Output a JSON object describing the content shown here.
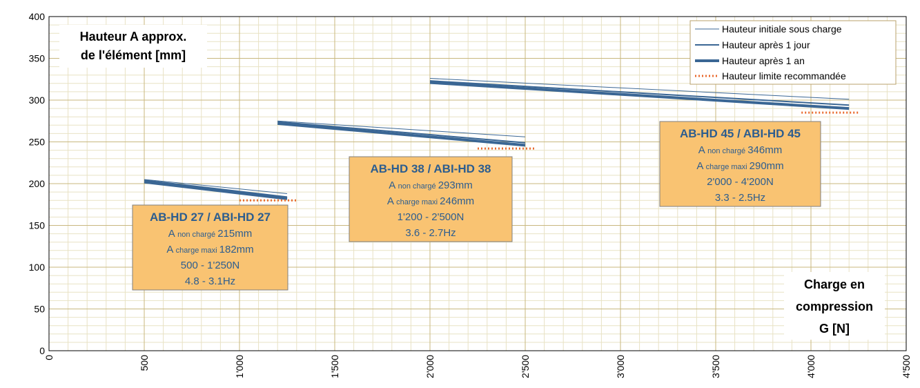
{
  "chart_data": {
    "type": "line",
    "xlim": [
      0,
      4500
    ],
    "ylim": [
      0,
      400
    ],
    "x_ticks": [
      "0",
      "500",
      "1'000",
      "1'500",
      "2'000",
      "2'500",
      "3'000",
      "3'500",
      "4'000",
      "4'500"
    ],
    "y_ticks": [
      "0",
      "50",
      "100",
      "150",
      "200",
      "250",
      "300",
      "350",
      "400"
    ],
    "grid": true,
    "legend_position": "top-right",
    "legend": [
      {
        "label": "Hauteur initiale sous charge",
        "style": "thin"
      },
      {
        "label": "Hauteur après 1 jour",
        "style": "medium"
      },
      {
        "label": "Hauteur après 1 an",
        "style": "thick"
      },
      {
        "label": "Hauteur limite recommandée",
        "style": "dotted"
      }
    ],
    "colors": {
      "line": "#3a6694",
      "limit": "#e96a2e",
      "box_fill": "#f9c372",
      "box_text": "#2c5d8f",
      "grid_major": "#c8b77e",
      "grid_minor": "#e8e2c4"
    },
    "y_title": [
      "Hauteur A approx.",
      "de l'élément [mm]"
    ],
    "x_title": [
      "Charge en",
      "compression",
      "G [N]"
    ],
    "groups": [
      {
        "name": "AB-HD 27  /  ABI-HD 27",
        "unloaded_label": "non chargé",
        "unloaded_value": "215mm",
        "max_label": "charge maxi",
        "max_value": "182mm",
        "range": "500 - 1'250N",
        "frequency": "4.8 - 3.1Hz",
        "series": [
          {
            "style": "thin",
            "x": [
              500,
              1250
            ],
            "y": [
              205,
              188
            ]
          },
          {
            "style": "medium",
            "x": [
              500,
              1250
            ],
            "y": [
              204,
              184
            ]
          },
          {
            "style": "thick",
            "x": [
              500,
              1250
            ],
            "y": [
              202,
              182
            ]
          }
        ],
        "limit": {
          "x": [
            1000,
            1300
          ],
          "y": 180
        }
      },
      {
        "name": "AB-HD 38  /  ABI-HD 38",
        "unloaded_label": "non chargé",
        "unloaded_value": "293mm",
        "max_label": "charge maxi",
        "max_value": "246mm",
        "range": "1'200 - 2'500N",
        "frequency": "3.6 - 2.7Hz",
        "series": [
          {
            "style": "thin",
            "x": [
              1200,
              2500
            ],
            "y": [
              275,
              256
            ]
          },
          {
            "style": "medium",
            "x": [
              1200,
              2500
            ],
            "y": [
              274,
              249
            ]
          },
          {
            "style": "thick",
            "x": [
              1200,
              2500
            ],
            "y": [
              272,
              246
            ]
          }
        ],
        "limit": {
          "x": [
            2250,
            2550
          ],
          "y": 242
        }
      },
      {
        "name": "AB-HD 45  /  ABI-HD 45",
        "unloaded_label": "non chargé",
        "unloaded_value": "346mm",
        "max_label": "charge maxi",
        "max_value": "290mm",
        "range": "2'000 - 4'200N",
        "frequency": "3.3 - 2.5Hz",
        "series": [
          {
            "style": "thin",
            "x": [
              2000,
              4200
            ],
            "y": [
              326,
              301
            ]
          },
          {
            "style": "medium",
            "x": [
              2000,
              4200
            ],
            "y": [
              323,
              294
            ]
          },
          {
            "style": "thick",
            "x": [
              2000,
              4200
            ],
            "y": [
              321,
              290
            ]
          }
        ],
        "limit": {
          "x": [
            3950,
            4250
          ],
          "y": 285
        }
      }
    ]
  },
  "box_prefix": "A"
}
